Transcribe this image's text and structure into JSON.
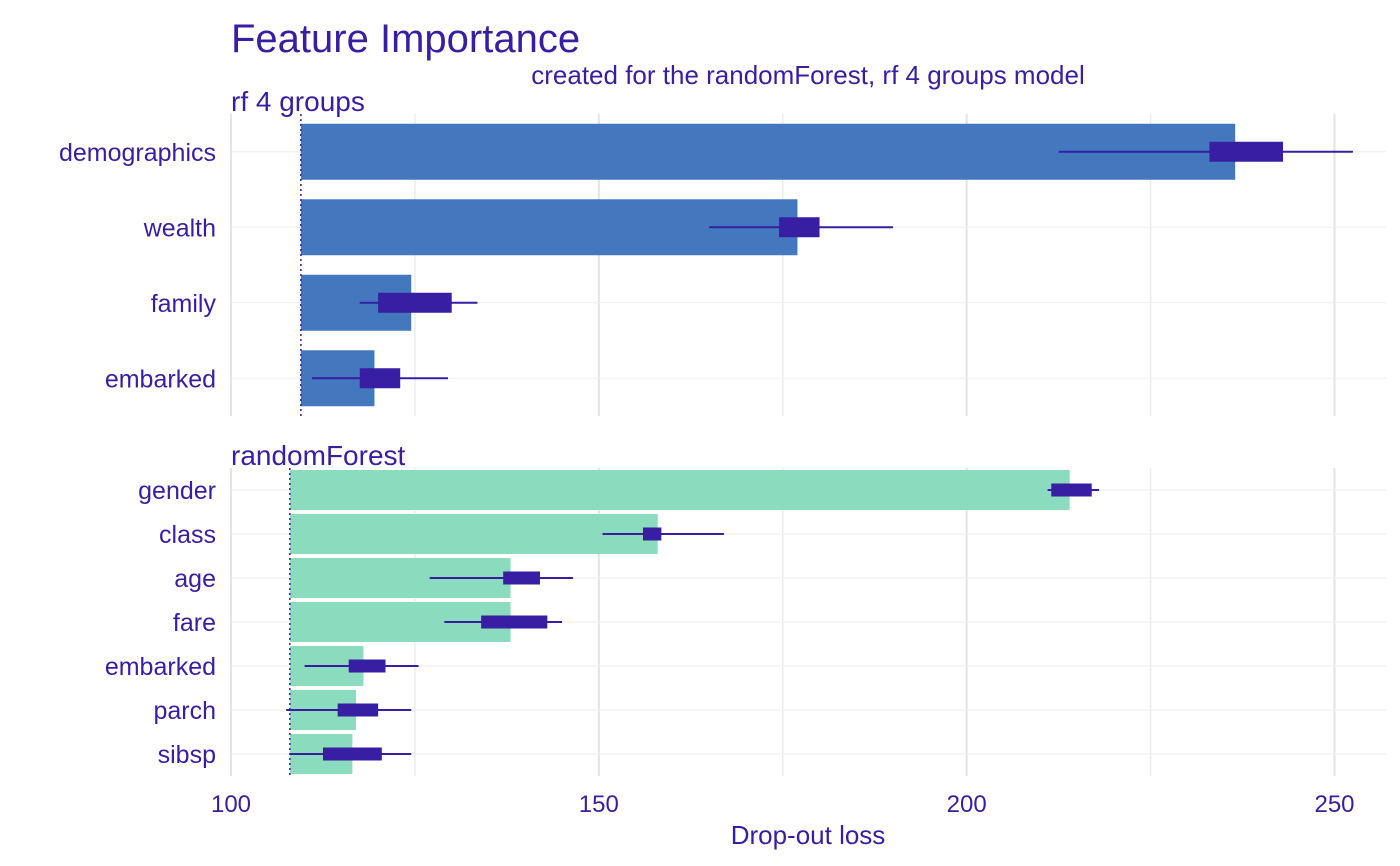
{
  "title": "Feature Importance",
  "subtitle": "created for the randomForest, rf 4 groups model",
  "chart_data": {
    "type": "bar",
    "orientation": "horizontal",
    "title": "Feature Importance",
    "subtitle": "created for the randomForest, rf 4 groups model",
    "xlabel": "Drop-out loss",
    "ylabel": "",
    "xlim": [
      100,
      257
    ],
    "xticks": [
      100,
      150,
      200,
      250
    ],
    "grid": true,
    "legend": "none",
    "panels": [
      {
        "name": "rf 4 groups",
        "baseline": 109.5,
        "color": "#4378bf",
        "categories": [
          "demographics",
          "wealth",
          "family",
          "embarked"
        ],
        "values": [
          236.5,
          177.0,
          124.5,
          119.5
        ],
        "boxplots": [
          {
            "min": 212.5,
            "q1": 233.0,
            "q3": 243.0,
            "max": 252.5
          },
          {
            "min": 165.0,
            "q1": 174.5,
            "q3": 180.0,
            "max": 190.0
          },
          {
            "min": 117.5,
            "q1": 120.0,
            "q3": 130.0,
            "max": 133.5
          },
          {
            "min": 111.0,
            "q1": 117.5,
            "q3": 123.0,
            "max": 129.5
          }
        ]
      },
      {
        "name": "randomForest",
        "baseline": 108.0,
        "color": "#8bdcbe",
        "categories": [
          "gender",
          "class",
          "age",
          "fare",
          "embarked",
          "parch",
          "sibsp"
        ],
        "values": [
          214.0,
          158.0,
          138.0,
          138.0,
          118.0,
          117.0,
          116.5
        ],
        "boxplots": [
          {
            "min": 211.0,
            "q1": 211.5,
            "q3": 217.0,
            "max": 218.0
          },
          {
            "min": 150.5,
            "q1": 156.0,
            "q3": 158.5,
            "max": 167.0
          },
          {
            "min": 127.0,
            "q1": 137.0,
            "q3": 142.0,
            "max": 146.5
          },
          {
            "min": 129.0,
            "q1": 134.0,
            "q3": 143.0,
            "max": 145.0
          },
          {
            "min": 110.0,
            "q1": 116.0,
            "q3": 121.0,
            "max": 125.5
          },
          {
            "min": 107.5,
            "q1": 114.5,
            "q3": 120.0,
            "max": 124.5
          },
          {
            "min": 108.0,
            "q1": 112.5,
            "q3": 120.5,
            "max": 124.5
          }
        ]
      }
    ]
  }
}
